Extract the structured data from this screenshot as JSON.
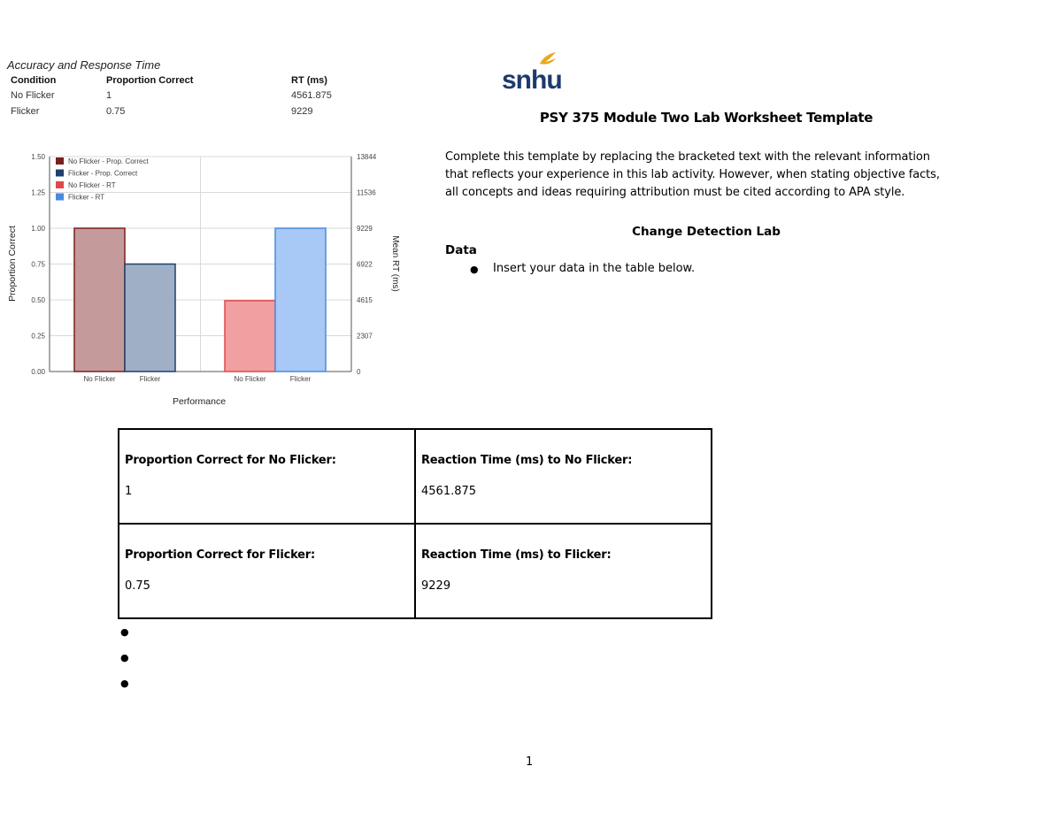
{
  "results_table": {
    "title": "Accuracy and Response Time",
    "headers": [
      "Condition",
      "Proportion Correct",
      "RT (ms)"
    ],
    "rows": [
      [
        "No Flicker",
        "1",
        "4561.875"
      ],
      [
        "Flicker",
        "0.75",
        "9229"
      ]
    ]
  },
  "chart_data": {
    "type": "bar",
    "title": "",
    "xlabel": "Performance",
    "ylabel": "Proportion Correct",
    "y2label": "Mean RT (ms)",
    "ylim": [
      0,
      1.5
    ],
    "y2lim": [
      0,
      13844
    ],
    "y_ticks": [
      "0.00",
      "0.25",
      "0.50",
      "0.75",
      "1.00",
      "1.25",
      "1.50"
    ],
    "y2_ticks": [
      "0",
      "2307",
      "4615",
      "6922",
      "9229",
      "11536",
      "13844"
    ],
    "groups": [
      {
        "categories": [
          "No Flicker",
          "Flicker"
        ],
        "axis": "left"
      },
      {
        "categories": [
          "No Flicker",
          "Flicker"
        ],
        "axis": "right"
      }
    ],
    "series": [
      {
        "name": "No Flicker - Prop. Correct",
        "group": 0,
        "category": "No Flicker",
        "value": 1,
        "axis": "left",
        "fill": "#c59a9a",
        "stroke": "#7a1f1f"
      },
      {
        "name": "Flicker - Prop. Correct",
        "group": 0,
        "category": "Flicker",
        "value": 0.75,
        "axis": "left",
        "fill": "#9fb0c6",
        "stroke": "#1f3f6e"
      },
      {
        "name": "No Flicker - RT",
        "group": 1,
        "category": "No Flicker",
        "value": 4561.875,
        "axis": "right",
        "fill": "#f0a0a0",
        "stroke": "#e04848"
      },
      {
        "name": "Flicker - RT",
        "group": 1,
        "category": "Flicker",
        "value": 9229,
        "axis": "right",
        "fill": "#a8c8f5",
        "stroke": "#4a8ae0"
      }
    ],
    "legend_position": "top-left",
    "grid": true
  },
  "logo": {
    "text": "snhu"
  },
  "document": {
    "title": "PSY 375 Module Two Lab Worksheet Template",
    "intro_lines": [
      "Complete this template by replacing the bracketed text with the relevant information",
      "that reflects your experience in this lab activity. However, when stating objective facts,",
      "all concepts and ideas requiring attribution must be cited according to APA style."
    ],
    "lab_title": "Change Detection Lab",
    "data_heading": "Data",
    "data_instruction": "Insert your data in the table below.",
    "bullet_glyph": "●",
    "page_number": "1"
  },
  "data_table": {
    "cells": [
      {
        "label": "Proportion Correct for No Flicker:",
        "value": "1"
      },
      {
        "label": "Reaction Time (ms) to No Flicker:",
        "value": "4561.875"
      },
      {
        "label": "Proportion Correct for Flicker:",
        "value": "0.75"
      },
      {
        "label": "Reaction Time (ms) to Flicker:",
        "value": "9229"
      }
    ]
  },
  "colors": {
    "logo_navy": "#1d3a6e",
    "logo_gold": "#e8a81e"
  }
}
